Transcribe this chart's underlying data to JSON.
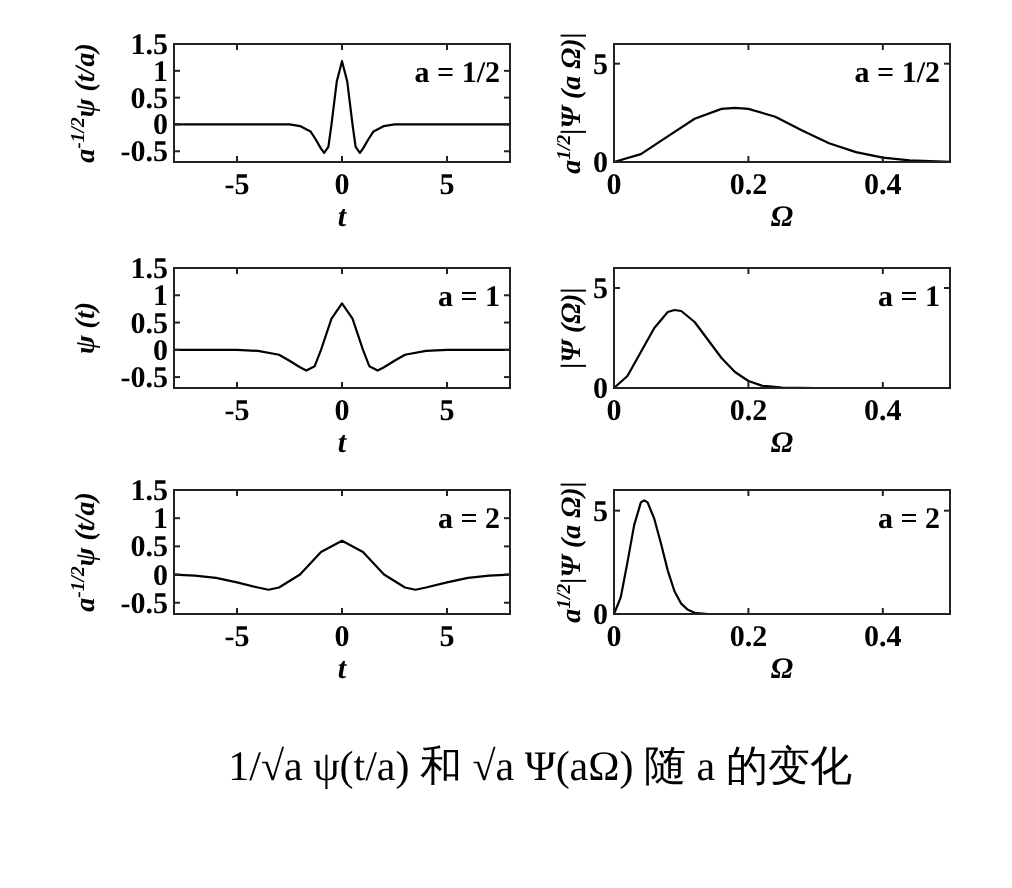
{
  "chart_data": [
    {
      "type": "line",
      "ylabel": "a$^{-1/2}$ψ (t/a)",
      "xlabel": "t",
      "annotations": [
        "a = 1/2"
      ],
      "xlim": [
        -8,
        8
      ],
      "xticks": [
        -5,
        0,
        5
      ],
      "ylim": [
        -0.7,
        1.5
      ],
      "yticks": [
        -0.5,
        0,
        0.5,
        1,
        1.5
      ],
      "x": [
        -8,
        -2.5,
        -2,
        -1.5,
        -1.25,
        -1,
        -0.85,
        -0.65,
        -0.5,
        -0.25,
        0,
        0.25,
        0.5,
        0.65,
        0.85,
        1,
        1.25,
        1.5,
        2,
        2.5,
        8
      ],
      "series": [
        {
          "color": "#000000",
          "values": [
            0,
            0,
            -0.03,
            -0.13,
            -0.28,
            -0.45,
            -0.53,
            -0.42,
            0,
            0.8,
            1.18,
            0.8,
            0,
            -0.42,
            -0.53,
            -0.45,
            -0.28,
            -0.13,
            -0.03,
            0,
            0
          ]
        }
      ]
    },
    {
      "type": "line",
      "ylabel": "a$^{1/2}$|Ψ (a Ω)|",
      "xlabel": "Ω",
      "annotations": [
        "a = 1/2"
      ],
      "xlim": [
        0,
        0.5
      ],
      "xticks": [
        0,
        0.2,
        0.4
      ],
      "ylim": [
        0,
        6
      ],
      "yticks": [
        0,
        5
      ],
      "x": [
        0,
        0.04,
        0.08,
        0.12,
        0.16,
        0.18,
        0.2,
        0.24,
        0.28,
        0.32,
        0.36,
        0.4,
        0.44,
        0.48,
        0.5
      ],
      "series": [
        {
          "color": "#000000",
          "values": [
            0,
            0.4,
            1.3,
            2.2,
            2.7,
            2.75,
            2.7,
            2.3,
            1.6,
            0.95,
            0.5,
            0.22,
            0.08,
            0.03,
            0.01
          ]
        }
      ]
    },
    {
      "type": "line",
      "ylabel": "ψ (t)",
      "xlabel": "t",
      "annotations": [
        "a = 1"
      ],
      "xlim": [
        -8,
        8
      ],
      "xticks": [
        -5,
        0,
        5
      ],
      "ylim": [
        -0.7,
        1.5
      ],
      "yticks": [
        -0.5,
        0,
        0.5,
        1,
        1.5
      ],
      "x": [
        -8,
        -5,
        -4,
        -3,
        -2.5,
        -2,
        -1.7,
        -1.3,
        -1,
        -0.5,
        0,
        0.5,
        1,
        1.3,
        1.7,
        2,
        2.5,
        3,
        4,
        5,
        8
      ],
      "series": [
        {
          "color": "#000000",
          "values": [
            0,
            0,
            -0.02,
            -0.09,
            -0.2,
            -0.32,
            -0.38,
            -0.3,
            0,
            0.57,
            0.85,
            0.57,
            0,
            -0.3,
            -0.38,
            -0.32,
            -0.2,
            -0.09,
            -0.02,
            0,
            0
          ]
        }
      ]
    },
    {
      "type": "line",
      "ylabel": "|Ψ (Ω)|",
      "xlabel": "Ω",
      "annotations": [
        "a = 1"
      ],
      "xlim": [
        0,
        0.5
      ],
      "xticks": [
        0,
        0.2,
        0.4
      ],
      "ylim": [
        0,
        6
      ],
      "yticks": [
        0,
        5
      ],
      "x": [
        0,
        0.02,
        0.04,
        0.06,
        0.08,
        0.09,
        0.1,
        0.12,
        0.14,
        0.16,
        0.18,
        0.2,
        0.22,
        0.25,
        0.3,
        0.5
      ],
      "series": [
        {
          "color": "#000000",
          "values": [
            0,
            0.6,
            1.8,
            3.0,
            3.8,
            3.9,
            3.85,
            3.3,
            2.4,
            1.5,
            0.8,
            0.35,
            0.12,
            0.02,
            0,
            0
          ]
        }
      ]
    },
    {
      "type": "line",
      "ylabel": "a$^{-1/2}$ψ (t/a)",
      "xlabel": "t",
      "annotations": [
        "a = 2"
      ],
      "xlim": [
        -8,
        8
      ],
      "xticks": [
        -5,
        0,
        5
      ],
      "ylim": [
        -0.7,
        1.5
      ],
      "yticks": [
        -0.5,
        0,
        0.5,
        1,
        1.5
      ],
      "x": [
        -8,
        -7,
        -6,
        -5,
        -4,
        -3.5,
        -3,
        -2,
        -1,
        0,
        1,
        2,
        3,
        3.5,
        4,
        5,
        6,
        7,
        8
      ],
      "series": [
        {
          "color": "#000000",
          "values": [
            0,
            -0.02,
            -0.06,
            -0.14,
            -0.23,
            -0.27,
            -0.23,
            0,
            0.4,
            0.6,
            0.4,
            0,
            -0.23,
            -0.27,
            -0.23,
            -0.14,
            -0.06,
            -0.02,
            0
          ]
        }
      ]
    },
    {
      "type": "line",
      "ylabel": "a$^{1/2}$|Ψ (a Ω)|",
      "xlabel": "Ω",
      "annotations": [
        "a = 2",
        "1/√a ψ(t/a) 和 √a Ψ(aΩ) 随 a 的变化"
      ],
      "xlim": [
        0,
        0.5
      ],
      "xticks": [
        0,
        0.2,
        0.4
      ],
      "ylim": [
        0,
        6
      ],
      "yticks": [
        0,
        5
      ],
      "x": [
        0,
        0.01,
        0.02,
        0.03,
        0.04,
        0.045,
        0.05,
        0.06,
        0.07,
        0.08,
        0.09,
        0.1,
        0.11,
        0.12,
        0.14,
        0.25
      ],
      "series": [
        {
          "color": "#000000",
          "values": [
            0,
            0.8,
            2.5,
            4.3,
            5.4,
            5.5,
            5.4,
            4.6,
            3.4,
            2.1,
            1.1,
            0.5,
            0.2,
            0.06,
            0,
            0
          ]
        }
      ]
    }
  ]
}
